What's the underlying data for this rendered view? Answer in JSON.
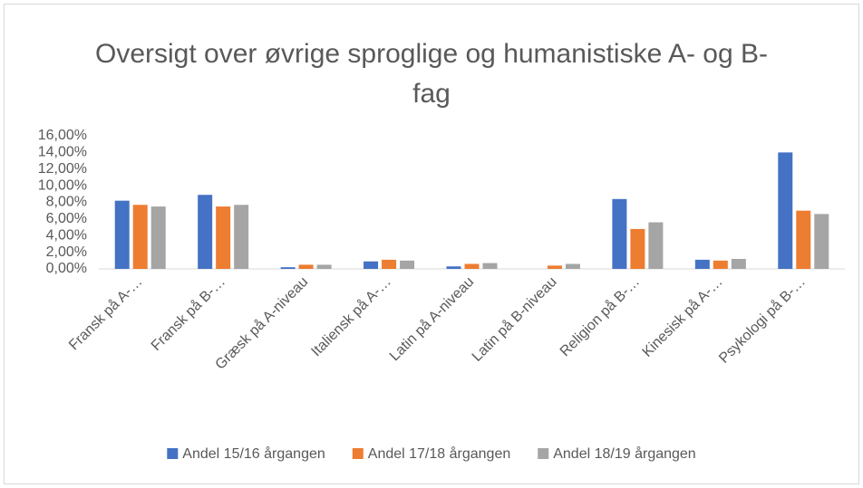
{
  "chart_data": {
    "type": "bar",
    "title": "Oversigt over øvrige sproglige og humanistiske A- og B-fag",
    "categories": [
      "Fransk på A-…",
      "Fransk på B-…",
      "Græsk på A-niveau",
      "Italiensk på A-…",
      "Latin på A-niveau",
      "Latin på B-niveau",
      "Religion på B-…",
      "Kinesisk på A-…",
      "Psykologi på B-…"
    ],
    "series": [
      {
        "name": "Andel 15/16 årgangen",
        "color": "#4472c4",
        "values": [
          8.2,
          8.9,
          0.2,
          0.9,
          0.3,
          0,
          8.4,
          1.1,
          14.0
        ]
      },
      {
        "name": "Andel 17/18 årgangen",
        "color": "#ed7d31",
        "values": [
          7.7,
          7.5,
          0.5,
          1.1,
          0.6,
          0.4,
          4.8,
          1.0,
          7.0
        ]
      },
      {
        "name": "Andel 18/19 årgangen",
        "color": "#a5a5a5",
        "values": [
          7.5,
          7.7,
          0.5,
          1.0,
          0.7,
          0.6,
          5.6,
          1.2,
          6.6
        ]
      }
    ],
    "ylim": [
      0,
      16
    ],
    "yticks": [
      {
        "value": 0,
        "label": "0,00%"
      },
      {
        "value": 2,
        "label": "2,00%"
      },
      {
        "value": 4,
        "label": "4,00%"
      },
      {
        "value": 6,
        "label": "6,00%"
      },
      {
        "value": 8,
        "label": "8,00%"
      },
      {
        "value": 10,
        "label": "10,00%"
      },
      {
        "value": 12,
        "label": "12,00%"
      },
      {
        "value": 14,
        "label": "14,00%"
      },
      {
        "value": 16,
        "label": "16,00%"
      }
    ],
    "grid": false,
    "legend": "bottom"
  }
}
